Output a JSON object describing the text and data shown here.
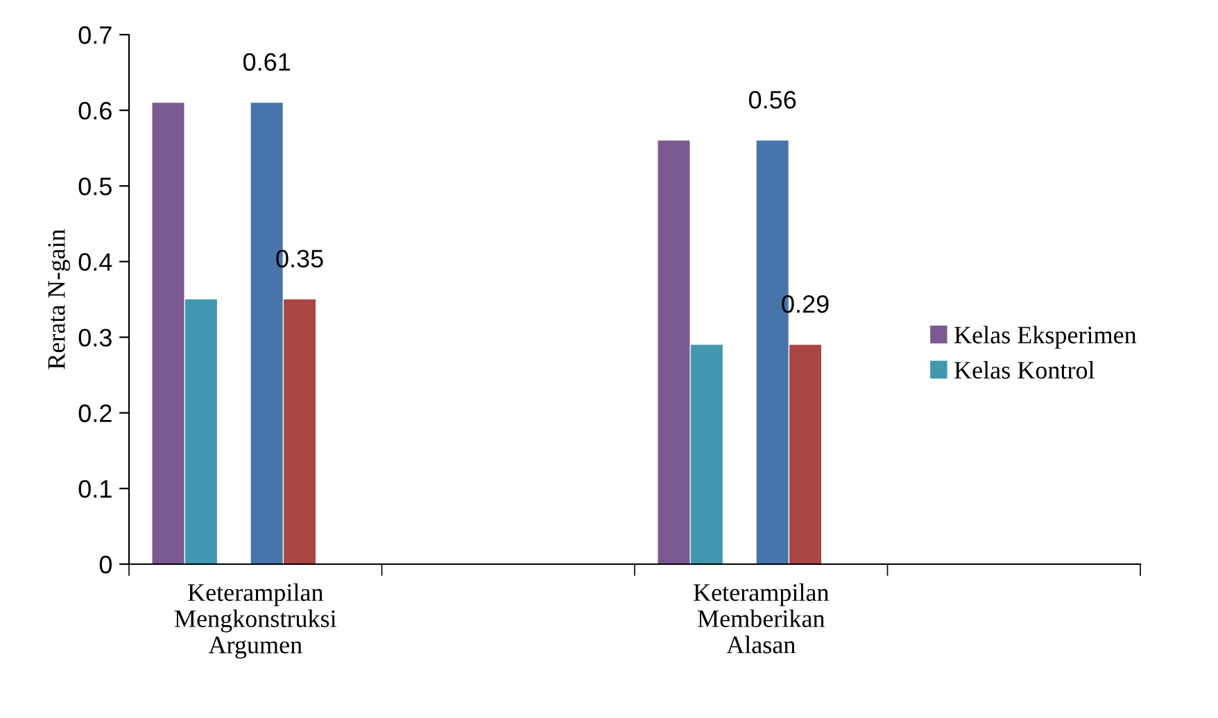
{
  "chart_data": {
    "type": "bar",
    "ylabel": "Rerata N-gain",
    "categories": [
      "Keterampilan\nMengkonstruksi\nArgumen",
      null,
      "Keterampilan\nMemberikan\nAlasan",
      null
    ],
    "series": [
      {
        "name": "Kelas Eksperimen",
        "color": "#7b5a92",
        "values": [
          0.61,
          null,
          0.56,
          null
        ]
      },
      {
        "name": "Kelas Kontrol",
        "color": "#4198af",
        "values": [
          0.35,
          null,
          0.29,
          null
        ]
      },
      {
        "color": "#4674ab",
        "values": [
          0.61,
          null,
          0.56,
          null
        ],
        "value_labels": [
          "0.61",
          null,
          "0.56",
          null
        ]
      },
      {
        "color": "#aa4644",
        "values": [
          0.35,
          null,
          0.29,
          null
        ],
        "value_labels": [
          "0.35",
          null,
          "0.29",
          null
        ]
      }
    ],
    "ylim": [
      0,
      0.7
    ],
    "yticks": [
      0,
      0.1,
      0.2,
      0.3,
      0.4,
      0.5,
      0.6,
      0.7
    ],
    "grid": false,
    "legend": "right"
  }
}
